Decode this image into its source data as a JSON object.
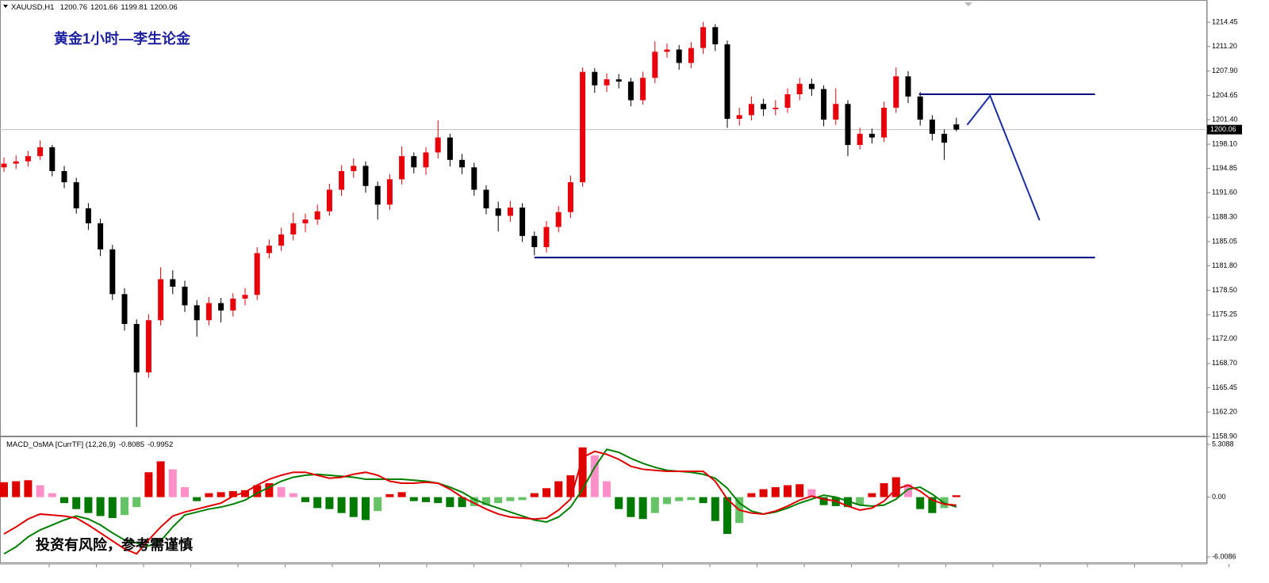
{
  "chart_data": [
    {
      "type": "candlestick",
      "symbol": "XAUUSD,H1",
      "annotation": "黄金1小时—李生论金",
      "up_color": "#e8000b",
      "down_color": "#000000",
      "price_line_color": "#c0c0c0",
      "ylim": [
        1158.7,
        1217.44
      ],
      "yticks": [
        1214.45,
        {
          "value": 1211.2,
          "label": "1211.20"
        },
        {
          "value": 1207.9,
          "label": "1207.90"
        },
        1204.65,
        {
          "value": 1201.4,
          "label": "1201.40"
        },
        {
          "value": 1198.1,
          "label": "1198.10"
        },
        1194.85,
        {
          "value": 1191.6,
          "label": "1191.60"
        },
        {
          "value": 1188.3,
          "label": "1188.30"
        },
        1185.05,
        {
          "value": 1181.8,
          "label": "1181.80"
        },
        {
          "value": 1178.5,
          "label": "1178.50"
        },
        1175.25,
        {
          "value": 1172.0,
          "label": "1172.00"
        },
        {
          "value": 1168.7,
          "label": "1168.70"
        },
        1165.45,
        {
          "value": 1162.2,
          "label": "1162.20"
        },
        {
          "value": 1158.9,
          "label": "1158.90"
        }
      ],
      "open": [
        1195.0,
        1195.5,
        1195.8,
        1196.5,
        1197.7,
        1194.5,
        1193.0,
        1189.5,
        1187.5,
        1184.0,
        1178.0,
        1174.0,
        1167.5,
        1174.5,
        1180.0,
        1179.0,
        1176.5,
        1174.5,
        1176.8,
        1175.8,
        1177.4,
        1177.9,
        1183.5,
        1184.5,
        1186.0,
        1187.5,
        1188.0,
        1189.1,
        1192.0,
        1194.5,
        1195.2,
        1192.5,
        1190.0,
        1193.4,
        1196.5,
        1195.0,
        1197.0,
        1199.0,
        1196.0,
        1195.0,
        1192.0,
        1189.5,
        1188.5,
        1189.6,
        1185.8,
        1184.3,
        1187.0,
        1189.0,
        1193.0,
        1207.8,
        1206.0,
        1206.8,
        1206.5,
        1204.0,
        1207.0,
        1210.5,
        1210.8,
        1209.0,
        1211.0,
        1213.8,
        1211.5,
        1201.5,
        1202.0,
        1203.5,
        1202.8,
        1203.0,
        1204.8,
        1206.2,
        1205.5,
        1201.4,
        1203.5,
        1198.0,
        1199.5,
        1199.0,
        1203.0,
        1207.2,
        1204.5,
        1201.4,
        1199.5,
        1200.76
      ],
      "high": [
        1196.3,
        1196.6,
        1197.2,
        1198.6,
        1198.0,
        1195.2,
        1193.6,
        1190.2,
        1188.1,
        1184.6,
        1178.8,
        1174.6,
        1175.3,
        1181.6,
        1181.2,
        1179.8,
        1177.2,
        1177.6,
        1177.5,
        1178.1,
        1178.8,
        1184.3,
        1185.3,
        1186.9,
        1188.9,
        1188.8,
        1190.0,
        1192.8,
        1195.3,
        1196.2,
        1195.8,
        1193.1,
        1194.1,
        1197.8,
        1197.0,
        1197.7,
        1201.3,
        1199.5,
        1196.8,
        1195.6,
        1192.6,
        1190.4,
        1190.5,
        1190.2,
        1186.4,
        1187.8,
        1189.8,
        1193.9,
        1208.4,
        1208.3,
        1207.6,
        1207.5,
        1207.0,
        1207.8,
        1211.9,
        1211.6,
        1211.4,
        1211.8,
        1214.5,
        1214.2,
        1212.0,
        1203.0,
        1204.5,
        1204.2,
        1204.0,
        1205.6,
        1207.0,
        1206.9,
        1206.0,
        1205.6,
        1204.0,
        1200.3,
        1200.2,
        1203.8,
        1208.4,
        1207.9,
        1205.1,
        1202.0,
        1200.1,
        1201.66
      ],
      "low": [
        1194.4,
        1194.8,
        1195.1,
        1196.0,
        1193.8,
        1192.2,
        1188.8,
        1186.6,
        1183.1,
        1177.2,
        1173.1,
        1160.2,
        1166.8,
        1173.8,
        1178.0,
        1175.6,
        1172.3,
        1173.8,
        1174.2,
        1175.0,
        1176.5,
        1177.2,
        1182.8,
        1183.8,
        1185.2,
        1186.3,
        1187.3,
        1188.5,
        1191.2,
        1193.6,
        1191.6,
        1188.0,
        1189.3,
        1192.7,
        1194.2,
        1194.0,
        1196.2,
        1195.1,
        1194.1,
        1191.2,
        1188.7,
        1186.4,
        1187.7,
        1185.0,
        1183.2,
        1183.6,
        1186.3,
        1188.2,
        1192.4,
        1205.0,
        1205.1,
        1205.6,
        1203.2,
        1203.4,
        1206.3,
        1209.7,
        1208.1,
        1208.3,
        1210.2,
        1210.6,
        1200.3,
        1200.6,
        1201.3,
        1201.9,
        1202.0,
        1202.3,
        1204.0,
        1204.6,
        1200.5,
        1200.7,
        1196.5,
        1197.4,
        1198.2,
        1198.4,
        1202.3,
        1203.6,
        1200.6,
        1198.6,
        1196.0,
        1199.81
      ],
      "close": [
        1195.5,
        1195.8,
        1196.5,
        1197.7,
        1194.5,
        1193.0,
        1189.5,
        1187.5,
        1184.0,
        1178.0,
        1174.0,
        1167.5,
        1174.5,
        1180.0,
        1179.0,
        1176.5,
        1174.5,
        1176.8,
        1175.8,
        1177.4,
        1177.9,
        1183.5,
        1184.5,
        1186.0,
        1187.5,
        1188.0,
        1189.1,
        1192.0,
        1194.5,
        1195.2,
        1192.5,
        1190.0,
        1193.4,
        1196.5,
        1195.0,
        1197.0,
        1199.0,
        1196.0,
        1195.0,
        1192.0,
        1189.5,
        1188.5,
        1189.6,
        1185.8,
        1184.3,
        1187.0,
        1189.0,
        1193.0,
        1207.8,
        1206.0,
        1206.8,
        1206.5,
        1204.0,
        1207.0,
        1210.5,
        1210.8,
        1209.0,
        1211.0,
        1213.8,
        1211.5,
        1201.5,
        1202.0,
        1203.5,
        1202.8,
        1203.0,
        1204.8,
        1206.2,
        1205.5,
        1201.4,
        1203.5,
        1198.0,
        1199.5,
        1199.0,
        1203.0,
        1207.2,
        1204.5,
        1201.4,
        1199.5,
        1198.3,
        1200.06
      ],
      "drawings": [
        {
          "color": "#00007f",
          "points": [
            [
              44,
              1182.9
            ],
            [
              90.5,
              1182.9
            ]
          ]
        },
        {
          "color": "#00007f",
          "points": [
            [
              75.9,
              1204.8
            ],
            [
              90.5,
              1204.8
            ]
          ]
        },
        {
          "color": "#1a2ea8",
          "points": [
            [
              79.9,
              1200.7
            ],
            [
              81.8,
              1204.6
            ],
            [
              85.9,
              1187.9
            ]
          ]
        }
      ]
    },
    {
      "type": "macd",
      "title": "MACD_OsMA [CurrTF] (12,26,9)",
      "note": "投资有风险，参考需谨慎",
      "ylim": [
        -6.72,
        5.94
      ],
      "yticks": [
        5.3088,
        {
          "value": 0,
          "label": "0.00"
        },
        -6.0086
      ],
      "hist_colors": {
        "up_rising": "#e00000",
        "up_falling": "#ff8fc8",
        "down_falling": "#007a00",
        "down_rising": "#66c266"
      },
      "hist": [
        1.5,
        1.6,
        1.7,
        1.2,
        0.4,
        -0.6,
        -1.2,
        -1.6,
        -1.9,
        -2.1,
        -1.8,
        -1.0,
        2.5,
        3.6,
        2.8,
        1.0,
        -0.4,
        0.4,
        0.5,
        0.6,
        0.7,
        1.2,
        1.4,
        1.0,
        0.4,
        -0.5,
        -1.1,
        -1.2,
        -1.6,
        -2.0,
        -2.3,
        -1.4,
        0.3,
        0.5,
        -0.4,
        -0.5,
        -0.6,
        -1.0,
        -1.0,
        -0.9,
        -0.8,
        -0.6,
        -0.4,
        -0.3,
        0.4,
        0.9,
        1.6,
        2.2,
        5.0,
        4.2,
        1.6,
        -1.2,
        -2.0,
        -2.2,
        -1.6,
        -0.7,
        -0.4,
        -0.3,
        -0.6,
        -2.4,
        -3.7,
        -2.6,
        0.4,
        0.8,
        1.0,
        1.2,
        1.3,
        0.8,
        -0.8,
        -0.9,
        -1.0,
        -0.8,
        0.4,
        1.4,
        2.0,
        1.3,
        -1.2,
        -1.6,
        -1.1,
        0.19
      ],
      "macd": {
        "color": "#e00000",
        "values": [
          -3.7,
          -3.0,
          -2.2,
          -1.7,
          -1.8,
          -1.9,
          -2.1,
          -2.8,
          -3.6,
          -4.4,
          -5.2,
          -5.7,
          -4.3,
          -3.0,
          -1.9,
          -1.5,
          -1.2,
          -0.9,
          -0.6,
          0.1,
          0.5,
          1.2,
          1.8,
          2.2,
          2.5,
          2.5,
          2.2,
          1.9,
          2.0,
          2.3,
          2.5,
          2.2,
          1.6,
          1.4,
          1.4,
          1.5,
          1.4,
          0.8,
          0.0,
          -0.6,
          -1.2,
          -1.7,
          -2.0,
          -2.1,
          -2.2,
          -2.1,
          -1.3,
          -0.2,
          4.0,
          4.6,
          4.3,
          3.8,
          3.1,
          2.8,
          2.7,
          2.6,
          2.6,
          2.6,
          2.6,
          1.6,
          -0.2,
          -1.3,
          -1.6,
          -1.7,
          -1.4,
          -0.9,
          -0.3,
          0.1,
          -0.2,
          -0.4,
          -0.9,
          -1.3,
          -1.1,
          -0.4,
          0.8,
          1.2,
          0.6,
          -0.3,
          -0.7,
          -0.8085
        ]
      },
      "signal": {
        "color": "#008000",
        "values": [
          -5.7,
          -5.0,
          -4.0,
          -3.3,
          -2.8,
          -2.3,
          -1.9,
          -2.2,
          -2.8,
          -3.6,
          -4.3,
          -4.6,
          -4.9,
          -4.4,
          -3.0,
          -1.8,
          -1.5,
          -1.2,
          -1.0,
          -0.7,
          -0.3,
          0.4,
          1.0,
          1.6,
          2.0,
          2.2,
          2.3,
          2.2,
          2.1,
          2.0,
          1.8,
          1.8,
          1.8,
          1.8,
          1.7,
          1.6,
          1.4,
          1.0,
          0.5,
          -0.2,
          -0.7,
          -1.1,
          -1.5,
          -1.9,
          -2.3,
          -2.5,
          -2.0,
          -1.0,
          0.8,
          3.0,
          4.8,
          4.5,
          3.9,
          3.4,
          3.0,
          2.7,
          2.6,
          2.5,
          2.3,
          1.9,
          0.9,
          -0.6,
          -1.4,
          -1.7,
          -1.5,
          -1.1,
          -0.6,
          -0.2,
          0.2,
          0.0,
          -0.4,
          -0.8,
          -0.9,
          -0.8,
          -0.2,
          0.8,
          1.0,
          0.3,
          -0.6,
          -0.9952
        ]
      }
    }
  ]
}
